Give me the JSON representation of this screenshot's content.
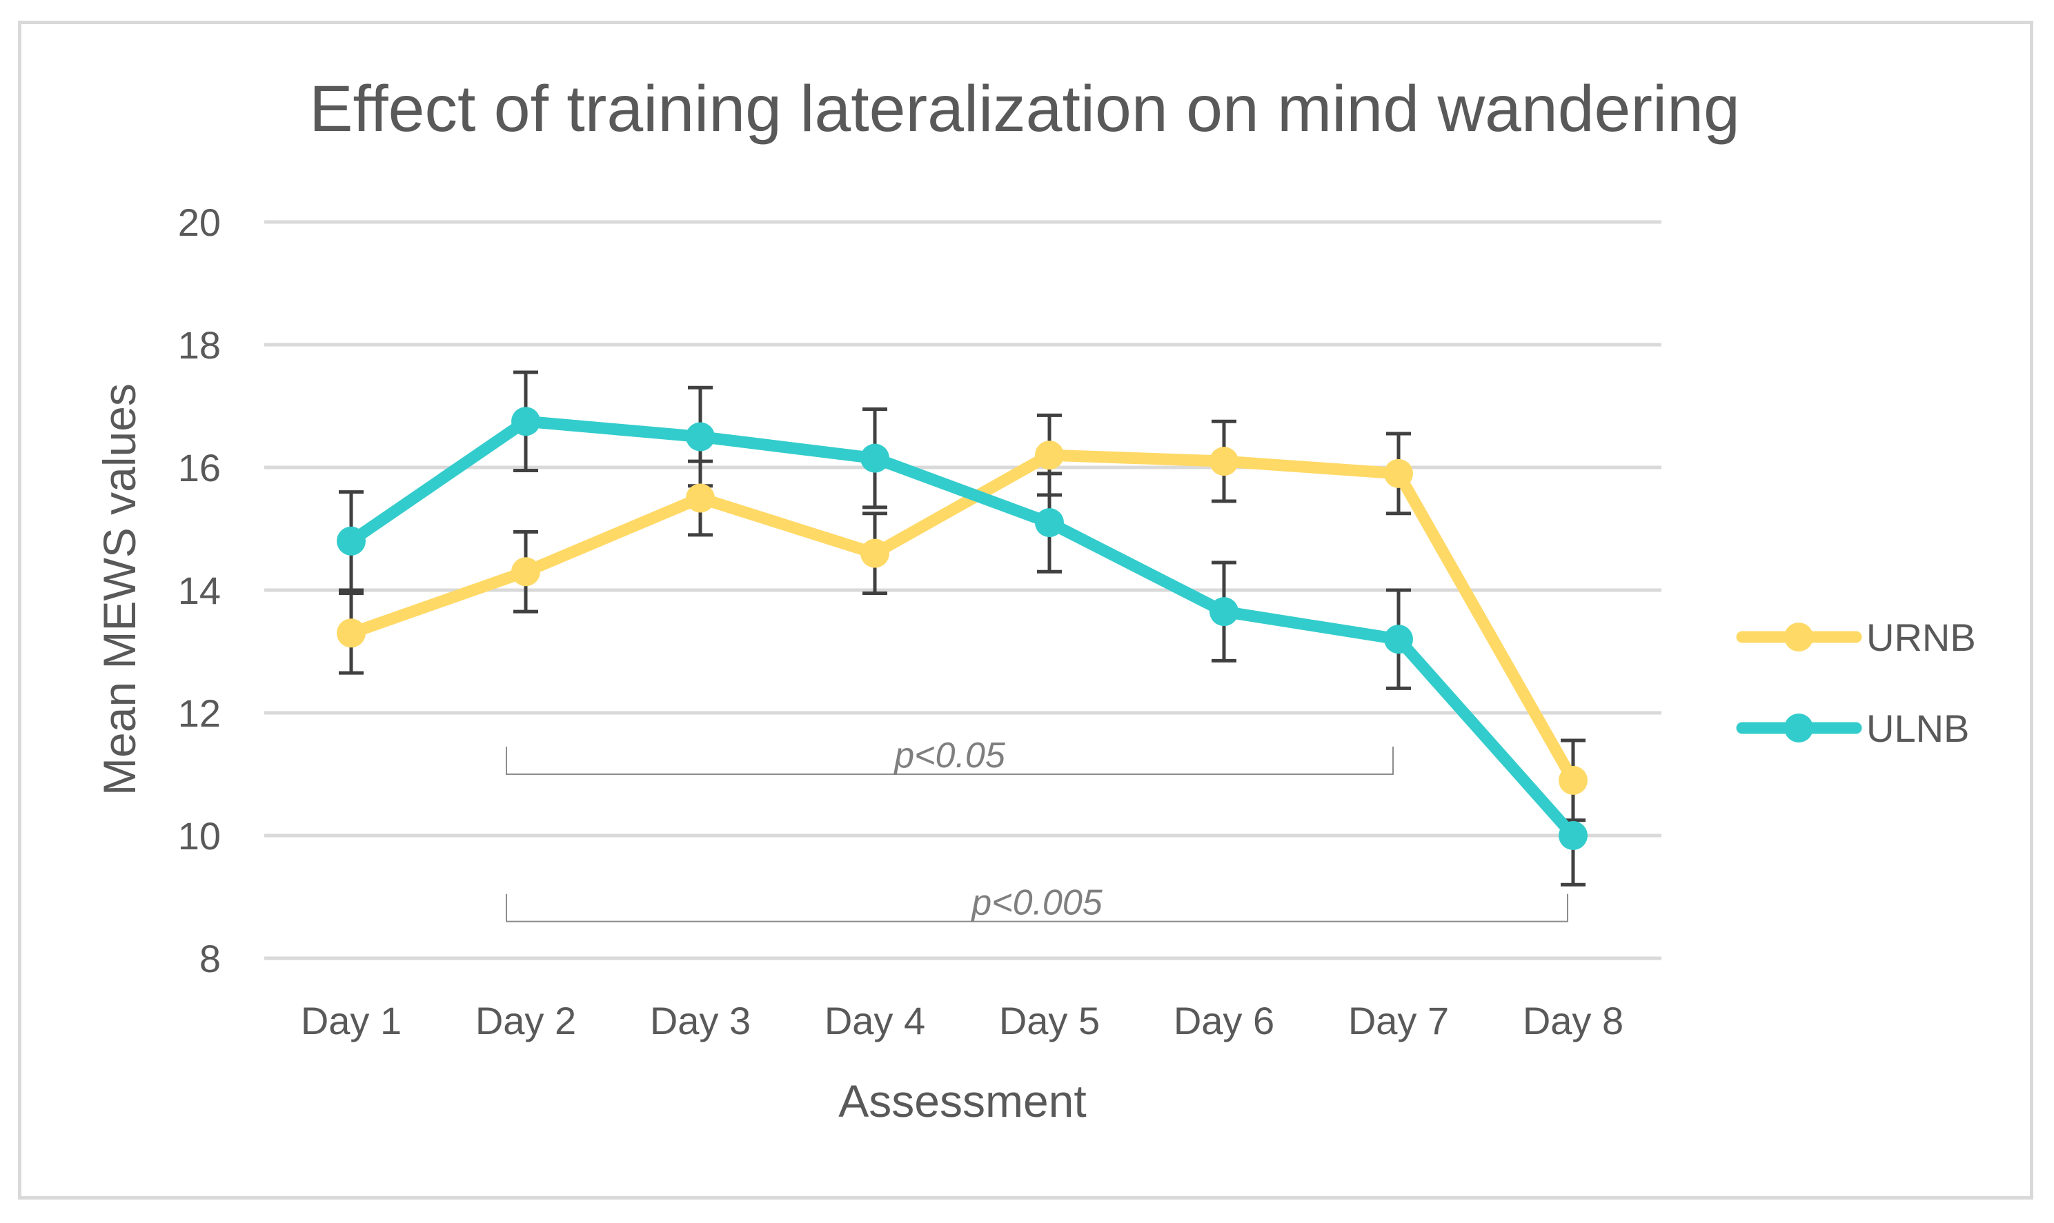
{
  "chart_data": {
    "type": "line",
    "title": "Effect of training lateralization on mind wandering",
    "xlabel": "Assessment",
    "ylabel": "Mean MEWS values",
    "categories": [
      "Day 1",
      "Day 2",
      "Day 3",
      "Day 4",
      "Day 5",
      "Day 6",
      "Day 7",
      "Day 8"
    ],
    "ylim": [
      8,
      20
    ],
    "yticks": [
      "8",
      "10",
      "12",
      "14",
      "16",
      "18",
      "20"
    ],
    "grid": true,
    "legend_position": "right",
    "series": [
      {
        "name": "URNB",
        "color": "#ffd966",
        "values": [
          13.3,
          14.3,
          15.5,
          14.6,
          16.2,
          16.1,
          15.9,
          10.9
        ],
        "errors": [
          0.65,
          0.65,
          0.6,
          0.65,
          0.65,
          0.65,
          0.65,
          0.65
        ]
      },
      {
        "name": "ULNB",
        "color": "#33cccc",
        "values": [
          14.8,
          16.75,
          16.5,
          16.15,
          15.1,
          13.65,
          13.2,
          10.0
        ],
        "errors": [
          0.8,
          0.8,
          0.8,
          0.8,
          0.8,
          0.8,
          0.8,
          0.8
        ]
      }
    ],
    "annotations": [
      {
        "text": "p<0.05",
        "from": "Day 2",
        "to": "Day 7",
        "level": 11.0
      },
      {
        "text": "p<0.005",
        "from": "Day 2",
        "to": "Day 8",
        "level": 8.6
      }
    ]
  }
}
